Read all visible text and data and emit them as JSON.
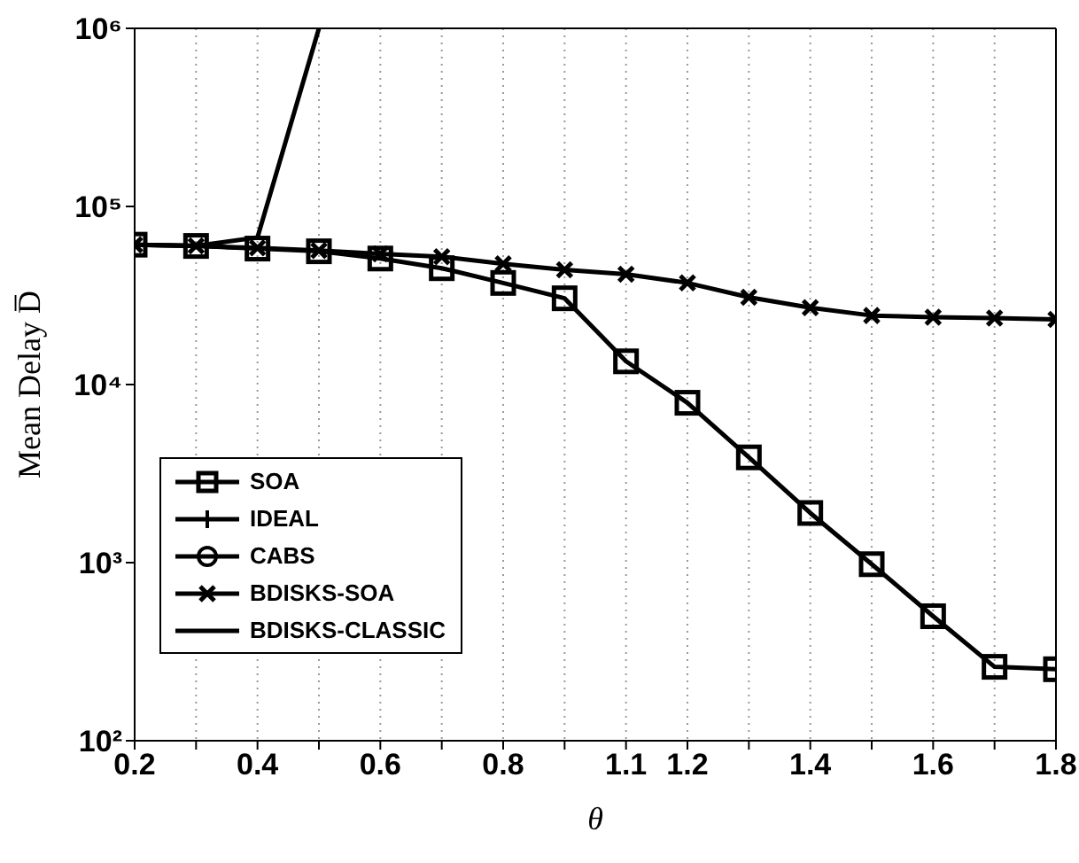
{
  "chart_data": {
    "type": "line",
    "xlabel": "θ",
    "ylabel": "Mean Delay D̅",
    "categories": [
      "0.2",
      null,
      "0.4",
      null,
      "0.6",
      null,
      "0.8",
      null,
      "1.1",
      "1.2",
      null,
      "1.4",
      null,
      "1.6",
      null,
      "1.8"
    ],
    "series": [
      {
        "name": "SOA",
        "color": "#000000",
        "marker": "square",
        "values": [
          61000,
          60000,
          58000,
          56000,
          51000,
          45000,
          37200,
          30500,
          13500,
          7900,
          3900,
          1900,
          980,
          500,
          260,
          252
        ]
      },
      {
        "name": "IDEAL",
        "color": "#000000",
        "marker": "cross",
        "values": [
          null,
          null,
          null,
          null,
          null,
          null,
          null,
          null,
          null,
          null,
          null,
          null,
          null,
          null,
          null,
          null
        ]
      },
      {
        "name": "CABS",
        "color": "#000000",
        "marker": "circle",
        "values": [
          null,
          null,
          null,
          null,
          null,
          null,
          null,
          null,
          null,
          null,
          null,
          null,
          null,
          null,
          null,
          null
        ]
      },
      {
        "name": "BDISKS-SOA",
        "color": "#000000",
        "marker": "x",
        "values": [
          61000,
          60000,
          58500,
          56500,
          54200,
          52200,
          47600,
          44100,
          41600,
          37200,
          30900,
          27000,
          24400,
          23900,
          23600,
          23200
        ]
      },
      {
        "name": "BDISKS-CLASSIC",
        "color": "#000000",
        "values": [
          61000,
          60000,
          67000,
          1000000,
          null,
          null,
          null,
          null,
          null,
          null,
          null,
          null,
          null,
          null,
          null,
          null
        ]
      }
    ],
    "log": "y",
    "ylim": [
      100,
      1000000
    ],
    "yticks": [
      {
        "value": 100,
        "label": "10²"
      },
      {
        "value": 1000,
        "label": "10³"
      },
      {
        "value": 10000,
        "label": "10⁴"
      },
      {
        "value": 100000,
        "label": "10⁵"
      },
      {
        "value": 1000000,
        "label": "10⁶"
      }
    ],
    "grid": "x",
    "legend": "bottom left",
    "line_style": "solid"
  }
}
